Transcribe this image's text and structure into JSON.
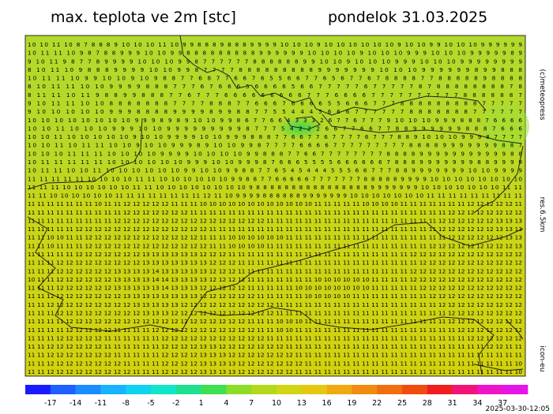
{
  "header": {
    "title": "max. teplota ve 2m [stc]",
    "date": "pondelok 31.03.2025"
  },
  "side_labels": {
    "copyright": "(c)meteopress",
    "resolution": "res.6.5km",
    "model": "icon-eu"
  },
  "timestamp": "2025-03-30-12:05",
  "map": {
    "rows": [
      "10 10 11 10 8 7 8 8 8 9 10 10 10 11 10 9 9 8 8 8 9 8 8 8 9 9 9 9 10 10 10 9 10 10 10 10 10 10 9 10 10 9 9 10 10 10 9 9 9 9 9 9",
      "10 11 11 10 9 8 7 8 8 9 9 9 10 10 9 9 8 8 8 8 8 8 8 8 8 9 9 9 9 9 9 10 10 10 10 9 10 10 10 9 9 9 10 10 10 9 9 9 9 9 8 9",
      "9 10 11 9 8 7 7 8 9 9 9 9 10 10 10 9 9 8 7 7 7 7 7 7 8 8 8 8 8 8 9 9 10 10 9 10 10 10 9 9 9 10 10 10 9 9 9 9 9 9 9 9",
      "8 10 11 10 9 8 8 8 9 9 9 9 10 10 9 9 8 7 7 7 7 8 8 8 8 8 8 8 8 8 9 9 9 9 9 9 9 10 10 10 9 9 9 9 9 9 8 9 9 8 8 8",
      "10 11 11 10 9 9 10 10 9 10 9 8 8 7 7 6 8 7 7 6 6 7 6 5 5 6 6 7 7 6 5 6 7 7 6 7 8 8 8 8 7 7 8 8 8 8 8 9 8 8 8 8",
      "8 10 11 11 10 10 9 9 9 9 8 8 8 7 7 7 6 7 6 6 6 5 6 6 6 6 5 6 6 7 7 7 7 7 6 7 7 7 7 7 8 7 8 8 8 8 8 8 8 8 7 8",
      "8 11 11 10 11 9 8 8 9 9 8 8 8 7 7 6 7 7 7 6 6 6 6 6 6 6 6 6 7 7 7 6 6 6 6 7 7 7 7 7 7 7 7 7 7 8 8 8 8 8 8 7",
      "9 10 11 11 10 10 8 8 8 8 8 8 8 7 7 7 7 8 8 8 7 7 6 6 6 7 6 6 6 6 5 5 6 6 6 7 7 7 8 8 8 8 8 8 8 8 8 7 7 7 7 7",
      "9 10 10 10 10 10 9 9 9 8 8 8 8 9 9 9 9 8 9 9 8 8 7 7 5 5 4 4 4 5 6 6 6 7 7 7 7 7 7 8 8 8 8 8 8 8 7 7 7 7 7 7",
      "10 10 10 10 10 10 10 10 9 9 9 8 9 8 9 10 10 9 9 8 6 7 7 6 6 4 3 3 3 2 6 7 7 6 7 7 7 9 10 10 10 9 9 9 8 8 8 7 6 6 6 6",
      "10 10 11 10 10 10 9 9 9 10 10 9 9 9 9 9 9 9 9 9 8 7 7 7 5 4 2 2 2 6 6 7 7 6 6 7 7 8 8 9 9 9 9 9 9 8 8 8 7 6 6 6",
      "10 10 11 10 10 10 10 10 9 10 10 9 9 9 9 10 10 9 9 9 8 8 8 7 7 6 6 7 7 6 7 7 7 7 6 7 7 7 8 8 9 10 10 10 9 9 9 8 7 7 7 7",
      "10 10 11 10 11 11 10 10 9 10 10 9 9 9 8 9 10 10 9 9 8 7 7 7 7 6 6 6 6 7 7 7 7 7 7 7 7 7 8 8 8 8 9 9 9 9 9 9 9 8 8 7",
      "10 10 10 11 11 11 10 10 10 10 9 9 9 9 10 10 10 10 9 9 8 8 8 7 7 6 6 7 7 7 7 7 7 7 7 8 8 8 8 9 9 9 9 9 9 9 9 9 9 9 8 8",
      "10 11 11 11 11 11 10 10 10 10 10 10 9 9 9 10 10 9 9 9 8 7 6 6 6 5 5 5 5 6 6 6 6 6 6 7 8 8 8 9 9 9 9 9 9 9 8 8 9 9 9 9",
      "10 11 11 10 10 11 10 10 10 10 10 10 9 9 10 10 9 9 8 8 7 7 6 5 4 5 4 4 4 5 5 5 6 6 7 7 7 8 8 9 9 9 9 9 9 9 10 10 9 9 9 9",
      "11 11 11 11 11 10 10 10 10 11 11 10 10 10 10 10 10 9 9 8 8 7 7 6 6 6 6 6 7 7 7 7 7 7 7 8 8 8 8 8 9 9 9 9 10 10 10 10 10 10 10 10",
      "11 11 11 10 10 10 10 10 10 11 11 10 10 10 10 10 10 10 10 9 8 8 8 8 8 8 8 8 8 8 8 8 8 8 8 8 9 9 9 9 9 9 9 10 10 10 10 10 10 10 11 11",
      "11 11 10 10 10 10 10 10 11 11 11 11 11 11 11 11 12 11 10 9 9 9 9 8 8 8 8 8 8 9 9 9 9 9 9 9 10 10 10 10 10 10 10 11 11 11 11 11 11 11 11 11",
      "11 11 11 11 11 11 11 10 11 11 12 12 12 12 12 11 11 11 10 10 10 10 10 10 10 10 10 10 10 10 11 11 11 11 11 10 10 10 10 11 11 11 11 11 11 11 12 12 12 12 12 11",
      "11 11 11 11 11 11 11 11 11 11 12 12 12 12 12 12 12 11 11 11 11 11 11 11 11 11 11 11 11 11 11 11 11 11 11 11 11 11 11 11 11 11 11 11 12 12 12 12 12 12 12 12",
      "11 11 11 11 11 11 11 11 11 12 12 12 12 12 12 12 12 12 12 12 12 12 12 12 12 11 11 11 11 11 11 11 11 11 11 11 11 11 11 11 11 11 11 12 12 12 12 12 12 13 13 13",
      "11 11 11 11 11 12 12 12 12 12 12 12 12 12 12 12 12 12 12 11 11 11 11 11 11 11 11 11 11 11 11 11 11 11 11 11 11 11 11 11 11 11 11 12 12 12 12 12 12 13 13 13",
      "11 11 10 10 11 11 12 12 12 12 12 12 12 12 12 12 12 12 11 11 11 10 10 10 10 10 10 11 11 11 11 11 11 11 11 11 11 11 11 11 11 11 11 11 12 12 12 12 12 12 13 13",
      "11 11 10 11 11 11 12 12 12 12 12 12 12 12 12 12 12 12 12 11 11 10 10 10 10 11 11 11 11 11 11 11 11 11 11 11 11 11 11 11 11 11 12 12 12 12 12 12 12 12 12 13",
      "11 11 11 11 11 12 12 12 12 12 12 12 13 13 13 13 13 13 12 12 12 11 11 11 11 11 11 11 11 11 11 11 11 11 11 11 11 11 11 11 12 12 12 12 12 12 12 12 12 12 12 12",
      "11 11 11 12 12 12 12 12 12 12 12 12 13 13 13 13 13 13 13 12 12 12 11 11 11 11 11 11 11 11 11 11 11 11 11 11 11 11 11 11 11 12 12 12 12 12 12 12 12 12 12 12",
      "11 11 11 12 12 12 12 12 12 13 13 13 13 14 13 13 13 13 13 12 12 12 11 11 11 11 11 11 11 11 11 11 11 11 11 11 11 11 11 11 12 12 12 12 12 12 12 12 12 12 12 12",
      "10 11 11 12 12 12 12 12 12 13 13 13 13 14 14 13 13 13 13 12 12 12 12 11 11 11 11 11 11 11 10 10 10 10 10 10 11 11 11 11 12 12 12 12 12 12 12 12 12 12 12 12",
      "11 11 11 12 12 12 12 12 12 13 13 13 13 13 14 13 13 13 12 12 12 12 12 11 11 11 11 11 10 10 10 10 10 10 10 10 11 11 11 11 11 12 12 12 12 12 12 12 12 12 12 12",
      "11 11 12 12 12 12 12 12 12 12 13 13 13 13 13 13 13 13 12 12 12 12 12 12 11 11 11 11 11 10 10 10 10 10 11 11 11 11 11 11 11 11 12 12 12 12 12 12 12 12 12 12",
      "11 11 12 12 12 12 12 12 12 12 12 13 13 13 13 13 12 12 12 12 12 12 12 12 12 12 11 11 11 11 11 11 11 11 11 11 11 11 11 11 11 11 11 12 12 12 12 12 12 12 12 12",
      "11 11 11 12 12 12 12 12 12 12 12 12 13 13 13 12 12 12 12 12 12 12 12 12 12 12 11 11 11 11 11 11 11 11 11 11 11 11 11 11 11 11 11 11 12 12 12 12 12 12 12 12",
      "11 11 11 11 12 12 12 12 12 12 12 12 12 12 12 12 12 12 12 12 12 12 12 11 11 11 10 10 10 11 11 11 11 11 11 11 11 11 11 11 11 11 11 11 12 12 12 12 12 12 12 12",
      "11 11 11 11 12 12 12 12 12 11 11 11 11 12 12 12 12 12 12 12 12 12 12 12 11 11 10 10 11 11 11 11 11 11 11 11 11 11 11 11 11 11 11 11 11 12 12 12 12 12 12 12",
      "11 11 11 12 12 12 12 12 11 11 11 11 11 11 12 12 12 12 12 12 12 12 12 12 12 11 11 11 11 11 11 11 11 11 11 11 11 11 11 11 11 11 11 11 11 11 12 12 12 12 12 12",
      "11 11 12 12 12 12 12 12 11 11 11 11 11 11 12 12 12 12 13 13 12 12 12 12 12 12 12 11 11 11 11 11 11 11 11 11 11 11 11 11 11 11 11 11 11 11 11 11 12 12 11 11",
      "11 11 12 12 12 12 12 12 12 11 11 11 11 11 12 12 12 12 13 13 13 12 12 12 12 12 12 12 11 11 11 11 11 11 11 11 11 11 11 11 11 11 11 11 11 11 11 11 11 11 11 11",
      "11 11 12 12 12 12 12 12 12 12 11 11 11 11 12 12 12 12 13 13 13 13 12 12 12 12 12 12 12 11 11 11 11 11 11 11 11 11 11 11 11 11 11 11 11 11 11 11 11 11 11 10",
      "11 11 12 12 12 12 12 12 12 12 12 11 11 11 12 12 12 12 13 13 13 13 12 12 12 12 12 12 11 11 11 11 11 11 11 11 11 11 11 11 11 11 11 11 11 11 11 11 11 11 11 10"
    ]
  },
  "colorbar": {
    "labels": [
      "-17",
      "-14",
      "-11",
      "-8",
      "-5",
      "-2",
      "1",
      "4",
      "7",
      "10",
      "13",
      "16",
      "19",
      "22",
      "25",
      "28",
      "31",
      "34",
      "37"
    ],
    "colors": [
      "#1a1aff",
      "#1f5fff",
      "#1a8cff",
      "#18b4ff",
      "#10d2f0",
      "#10e6c8",
      "#20e090",
      "#3ce050",
      "#8cdc28",
      "#b4d81a",
      "#d2d414",
      "#e6c810",
      "#f0aa10",
      "#f08c10",
      "#f06e10",
      "#f04c10",
      "#f01e1e",
      "#f01478",
      "#f014c8",
      "#e614e6"
    ]
  }
}
